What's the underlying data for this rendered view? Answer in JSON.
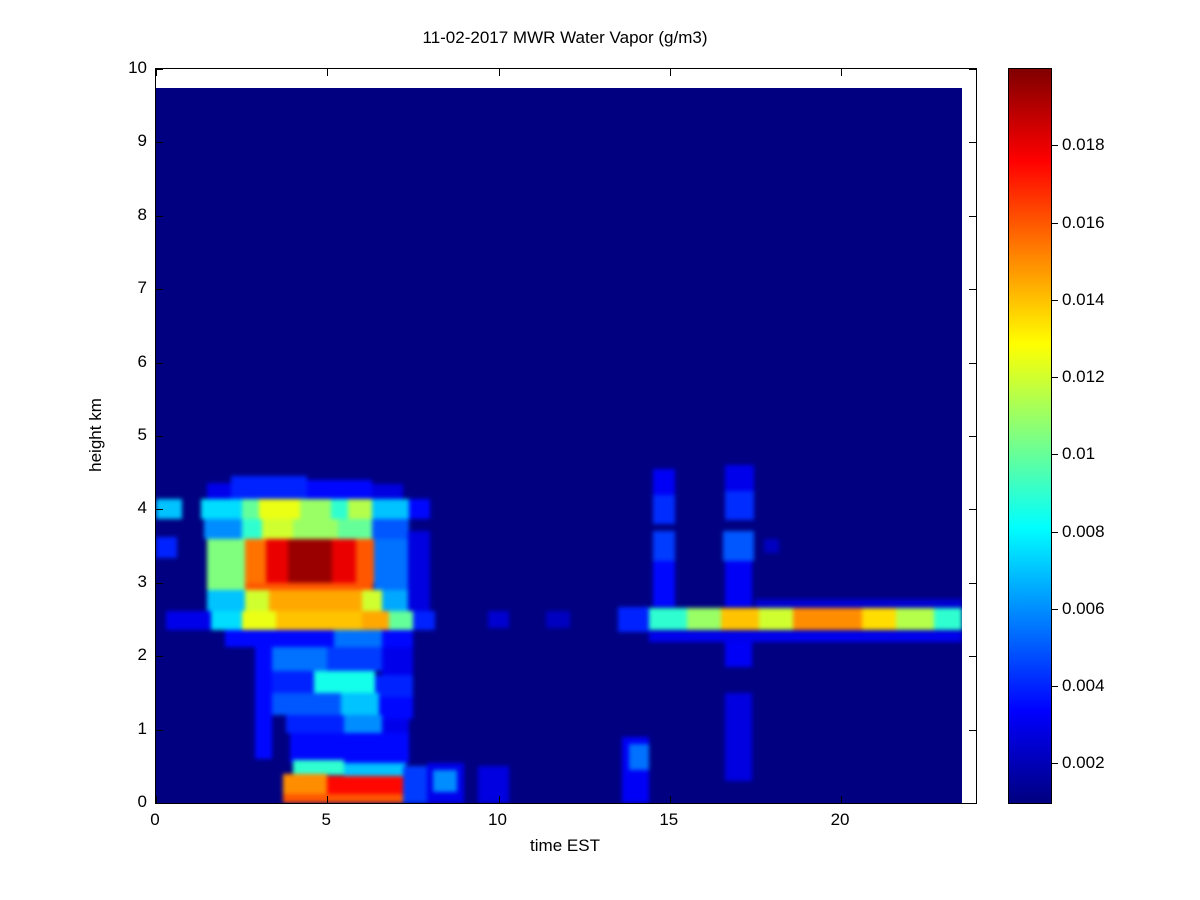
{
  "chart_data": {
    "type": "heatmap",
    "title": "11-02-2017 MWR Water Vapor (g/m3)",
    "xlabel": "time EST",
    "ylabel": "height km",
    "xlim": [
      0,
      23.94
    ],
    "ylim": [
      0,
      10
    ],
    "data_extent": {
      "x": [
        0,
        23.52
      ],
      "y": [
        0,
        9.74
      ]
    },
    "x_ticks": [
      0,
      5,
      10,
      15,
      20
    ],
    "y_ticks": [
      0,
      1,
      2,
      3,
      4,
      5,
      6,
      7,
      8,
      9,
      10
    ],
    "colorbar": {
      "colormap": "jet",
      "vmin": 0.001,
      "vmax": 0.02,
      "ticks": [
        0.002,
        0.004,
        0.006,
        0.008,
        0.01,
        0.012,
        0.014,
        0.016,
        0.018
      ],
      "tick_labels": [
        "0.002",
        "0.004",
        "0.006",
        "0.008",
        "0.01",
        "0.012",
        "0.014",
        "0.016",
        "0.018"
      ]
    },
    "background_value": 0.001,
    "cells_format": [
      "x0",
      "x1",
      "y0",
      "y1",
      "value"
    ],
    "cells": [
      [
        0,
        0.75,
        3.87,
        4.14,
        0.007
      ],
      [
        0,
        0.6,
        3.34,
        3.62,
        0.004
      ],
      [
        0.3,
        1.6,
        2.36,
        2.62,
        0.003
      ],
      [
        1.3,
        2.5,
        3.87,
        4.14,
        0.0075
      ],
      [
        2.5,
        3.0,
        3.87,
        4.14,
        0.01
      ],
      [
        3.0,
        4.2,
        3.87,
        4.14,
        0.0125
      ],
      [
        4.2,
        5.1,
        3.87,
        4.14,
        0.011
      ],
      [
        5.1,
        5.6,
        3.87,
        4.14,
        0.009
      ],
      [
        5.6,
        6.3,
        3.87,
        4.14,
        0.0115
      ],
      [
        6.3,
        7.4,
        3.87,
        4.14,
        0.007
      ],
      [
        7.4,
        8.0,
        3.87,
        4.14,
        0.0035
      ],
      [
        1.5,
        2.2,
        4.14,
        4.36,
        0.003
      ],
      [
        2.2,
        4.4,
        4.14,
        4.45,
        0.004
      ],
      [
        4.4,
        6.3,
        4.14,
        4.4,
        0.0035
      ],
      [
        6.3,
        7.2,
        4.14,
        4.34,
        0.0028
      ],
      [
        1.4,
        2.5,
        3.6,
        3.87,
        0.006
      ],
      [
        2.5,
        3.1,
        3.6,
        3.87,
        0.009
      ],
      [
        3.1,
        4.0,
        3.6,
        3.87,
        0.012
      ],
      [
        4.0,
        5.3,
        3.6,
        3.87,
        0.011
      ],
      [
        5.3,
        6.3,
        3.6,
        3.87,
        0.01
      ],
      [
        6.3,
        7.4,
        3.6,
        3.87,
        0.005
      ],
      [
        1.5,
        2.6,
        2.9,
        3.6,
        0.0105
      ],
      [
        2.6,
        6.35,
        2.9,
        3.0,
        0.016
      ],
      [
        2.6,
        3.2,
        3.0,
        3.6,
        0.0155
      ],
      [
        3.2,
        3.85,
        3.0,
        3.6,
        0.018
      ],
      [
        3.85,
        5.15,
        3.0,
        3.6,
        0.0195
      ],
      [
        5.15,
        5.85,
        3.0,
        3.6,
        0.018
      ],
      [
        5.85,
        6.35,
        3.0,
        3.6,
        0.016
      ],
      [
        6.35,
        7.35,
        2.9,
        3.6,
        0.0055
      ],
      [
        7.35,
        8.0,
        2.6,
        3.7,
        0.0028
      ],
      [
        1.5,
        2.6,
        2.62,
        2.9,
        0.007
      ],
      [
        2.6,
        3.3,
        2.62,
        2.9,
        0.012
      ],
      [
        3.3,
        6.0,
        2.62,
        2.9,
        0.0145
      ],
      [
        6.0,
        6.6,
        2.62,
        2.9,
        0.012
      ],
      [
        6.6,
        7.35,
        2.62,
        2.9,
        0.0065
      ],
      [
        1.6,
        2.5,
        2.36,
        2.62,
        0.0075
      ],
      [
        2.5,
        3.5,
        2.36,
        2.62,
        0.0125
      ],
      [
        3.5,
        6.0,
        2.36,
        2.62,
        0.014
      ],
      [
        6.0,
        6.8,
        2.36,
        2.62,
        0.0145
      ],
      [
        6.8,
        7.5,
        2.36,
        2.62,
        0.01
      ],
      [
        7.5,
        8.15,
        2.36,
        2.62,
        0.004
      ],
      [
        2.0,
        7.5,
        2.12,
        2.36,
        0.0035
      ],
      [
        5.2,
        6.6,
        2.12,
        2.36,
        0.0055
      ],
      [
        2.9,
        3.4,
        0.6,
        2.12,
        0.0035
      ],
      [
        3.4,
        5.0,
        1.8,
        2.12,
        0.0055
      ],
      [
        5.0,
        6.6,
        1.8,
        2.12,
        0.0045
      ],
      [
        6.6,
        7.5,
        1.75,
        2.12,
        0.003
      ],
      [
        3.4,
        4.6,
        1.5,
        1.8,
        0.004
      ],
      [
        4.6,
        6.4,
        1.5,
        1.8,
        0.0085
      ],
      [
        6.4,
        7.5,
        1.45,
        1.75,
        0.004
      ],
      [
        3.4,
        5.4,
        1.2,
        1.5,
        0.005
      ],
      [
        5.4,
        6.5,
        1.2,
        1.5,
        0.007
      ],
      [
        6.5,
        7.5,
        1.15,
        1.45,
        0.0035
      ],
      [
        3.8,
        5.5,
        0.95,
        1.2,
        0.004
      ],
      [
        5.5,
        6.6,
        0.9,
        1.2,
        0.006
      ],
      [
        6.6,
        7.4,
        0.9,
        1.15,
        0.003
      ],
      [
        3.9,
        7.4,
        0.55,
        0.95,
        0.0035
      ],
      [
        4.0,
        5.5,
        0.38,
        0.58,
        0.009
      ],
      [
        5.5,
        7.3,
        0.35,
        0.55,
        0.007
      ],
      [
        3.7,
        5.0,
        0.12,
        0.4,
        0.015
      ],
      [
        5.0,
        7.2,
        0.1,
        0.37,
        0.0175
      ],
      [
        3.7,
        7.2,
        0.0,
        0.12,
        0.016
      ],
      [
        7.2,
        7.9,
        0.0,
        0.5,
        0.0045
      ],
      [
        7.9,
        9.0,
        0.0,
        0.55,
        0.003
      ],
      [
        8.1,
        8.8,
        0.15,
        0.45,
        0.006
      ],
      [
        9.4,
        10.3,
        0.0,
        0.5,
        0.0028
      ],
      [
        9.7,
        10.3,
        2.38,
        2.62,
        0.0025
      ],
      [
        11.4,
        12.1,
        2.38,
        2.62,
        0.0022
      ],
      [
        13.5,
        14.4,
        2.33,
        2.67,
        0.004
      ],
      [
        13.6,
        14.4,
        0.0,
        0.9,
        0.0032
      ],
      [
        13.8,
        14.4,
        0.45,
        0.8,
        0.0055
      ],
      [
        14.5,
        15.15,
        4.2,
        4.55,
        0.0032
      ],
      [
        14.5,
        15.15,
        3.8,
        4.2,
        0.0042
      ],
      [
        14.5,
        15.15,
        3.3,
        3.7,
        0.0045
      ],
      [
        14.5,
        15.15,
        2.67,
        3.3,
        0.0035
      ],
      [
        16.6,
        17.45,
        4.25,
        4.6,
        0.003
      ],
      [
        16.6,
        17.45,
        3.85,
        4.25,
        0.0042
      ],
      [
        16.55,
        17.45,
        3.3,
        3.7,
        0.005
      ],
      [
        16.6,
        17.4,
        2.67,
        3.3,
        0.0032
      ],
      [
        17.75,
        18.2,
        3.4,
        3.6,
        0.0022
      ],
      [
        16.6,
        17.4,
        1.85,
        2.33,
        0.0032
      ],
      [
        16.6,
        17.4,
        0.3,
        1.5,
        0.0028
      ],
      [
        14.4,
        23.52,
        2.2,
        2.35,
        0.003
      ],
      [
        17.5,
        23.52,
        2.65,
        2.78,
        0.0025
      ],
      [
        14.4,
        15.5,
        2.35,
        2.65,
        0.009
      ],
      [
        15.5,
        16.5,
        2.35,
        2.65,
        0.011
      ],
      [
        16.5,
        17.6,
        2.35,
        2.65,
        0.014
      ],
      [
        17.6,
        18.6,
        2.35,
        2.65,
        0.012
      ],
      [
        18.6,
        20.6,
        2.35,
        2.65,
        0.015
      ],
      [
        20.6,
        21.6,
        2.35,
        2.65,
        0.0135
      ],
      [
        21.6,
        22.7,
        2.35,
        2.65,
        0.0115
      ],
      [
        22.7,
        23.52,
        2.35,
        2.65,
        0.009
      ]
    ]
  }
}
